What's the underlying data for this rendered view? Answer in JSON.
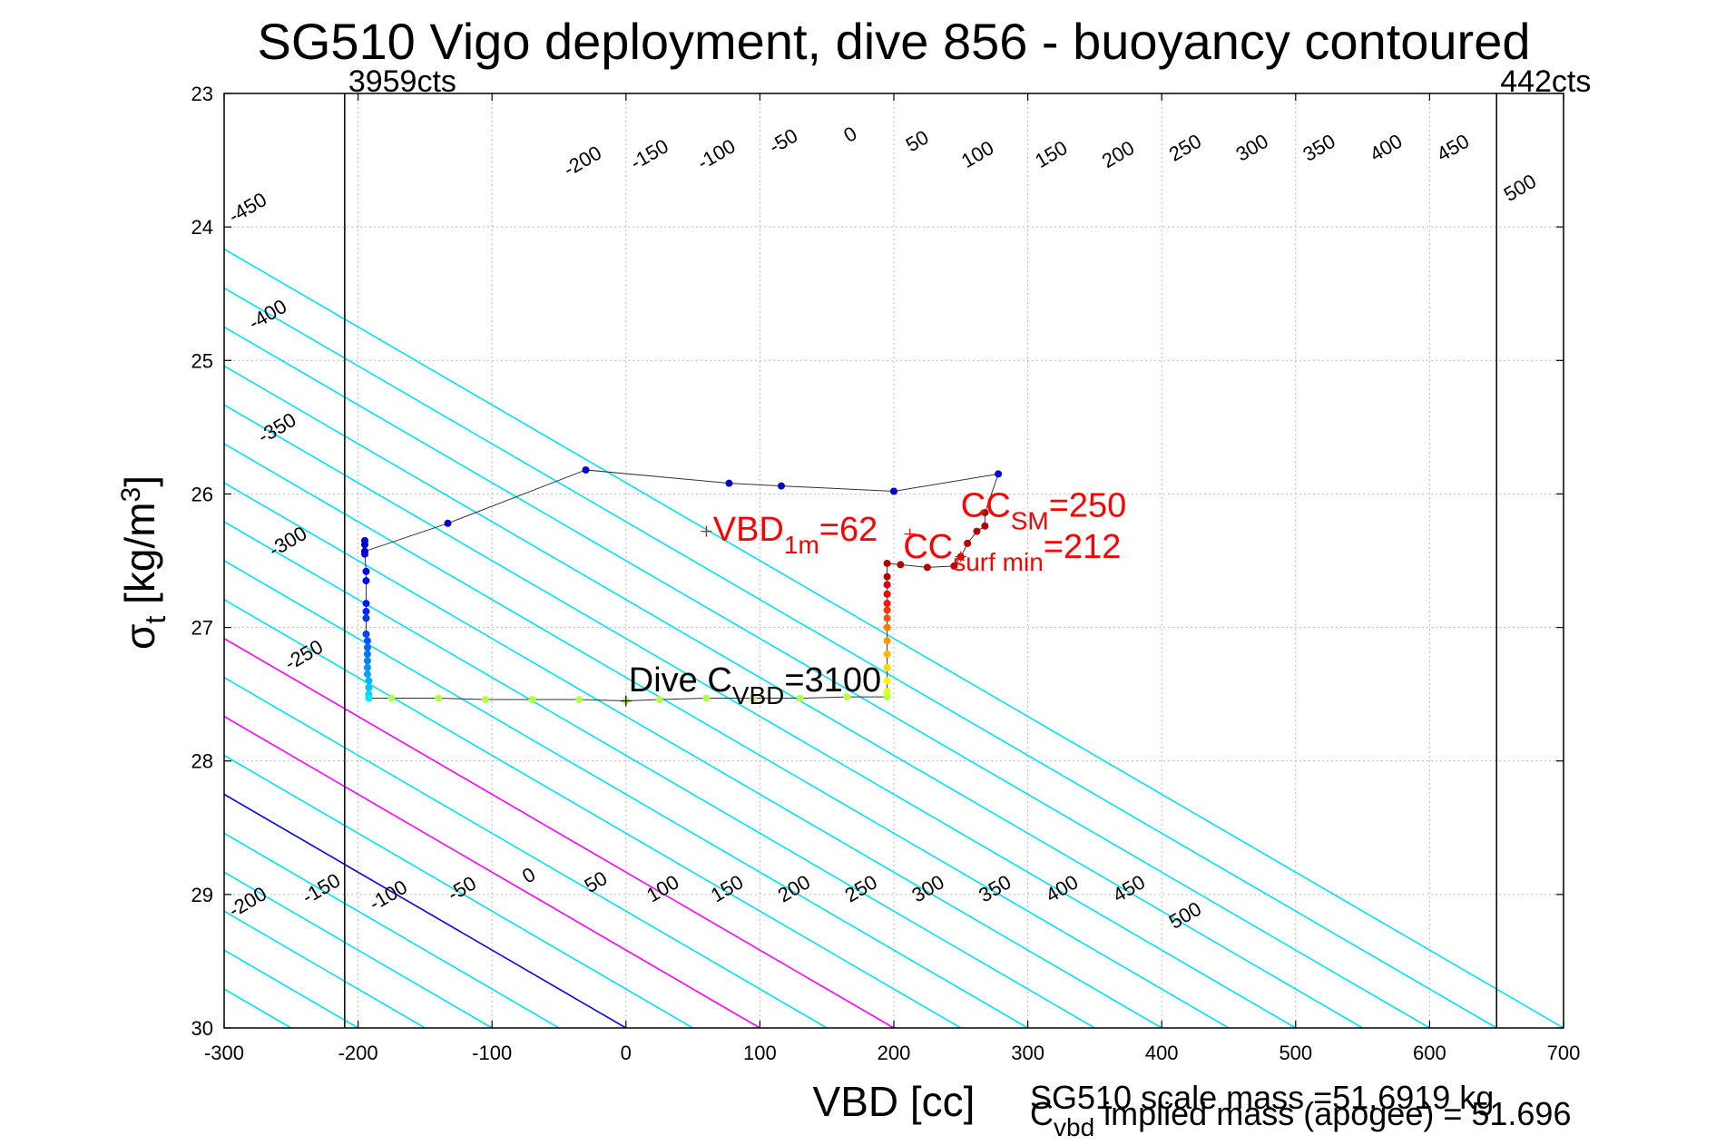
{
  "chart_data": {
    "type": "scatter",
    "title": "SG510 Vigo deployment, dive 856 - buoyancy contoured",
    "xlabel": "VBD [cc]",
    "ylabel": {
      "base": "σ",
      "sub": "t",
      "unit_pre": " [kg/m",
      "unit_sup": "3",
      "unit_post": "]"
    },
    "xlim": [
      -300,
      700
    ],
    "ylim": [
      23,
      30
    ],
    "y_reversed": true,
    "grid": true,
    "x_ticks": [
      -300,
      -200,
      -100,
      0,
      100,
      200,
      300,
      400,
      500,
      600,
      700
    ],
    "y_ticks": [
      23,
      24,
      25,
      26,
      27,
      28,
      29,
      30
    ],
    "vertical_lines": [
      {
        "x": -210,
        "label": "3959cts"
      },
      {
        "x": 650,
        "label": "442cts"
      }
    ],
    "contours": {
      "color": "#00e5ee",
      "slope_cc_per_sigma": 171.4,
      "values": [
        -450,
        -400,
        -350,
        -300,
        -250,
        -200,
        -150,
        -100,
        -50,
        0,
        50,
        100,
        150,
        200,
        250,
        300,
        350,
        400,
        450,
        500
      ],
      "highlight": [
        {
          "value": 0,
          "color": "#0000ff"
        },
        {
          "value": 100,
          "color": "#ff00ff"
        },
        {
          "value": 200,
          "color": "#ff00ff"
        }
      ],
      "labels_top": [
        {
          "value": -450,
          "x": -280,
          "y": 23.9
        },
        {
          "value": -400,
          "x": -265,
          "y": 24.7
        },
        {
          "value": -350,
          "x": -258,
          "y": 25.55
        },
        {
          "value": -300,
          "x": -250,
          "y": 26.4
        },
        {
          "value": -250,
          "x": -238,
          "y": 27.25
        },
        {
          "value": -200,
          "x": -30,
          "y": 23.55
        },
        {
          "value": -150,
          "x": 20,
          "y": 23.5
        },
        {
          "value": -100,
          "x": 70,
          "y": 23.5
        },
        {
          "value": -50,
          "x": 120,
          "y": 23.4
        },
        {
          "value": 0,
          "x": 170,
          "y": 23.35
        },
        {
          "value": 50,
          "x": 220,
          "y": 23.4
        },
        {
          "value": 100,
          "x": 265,
          "y": 23.5
        },
        {
          "value": 150,
          "x": 320,
          "y": 23.5
        },
        {
          "value": 200,
          "x": 370,
          "y": 23.5
        },
        {
          "value": 250,
          "x": 420,
          "y": 23.45
        },
        {
          "value": 300,
          "x": 470,
          "y": 23.45
        },
        {
          "value": 350,
          "x": 520,
          "y": 23.45
        },
        {
          "value": 400,
          "x": 570,
          "y": 23.45
        },
        {
          "value": 450,
          "x": 620,
          "y": 23.45
        },
        {
          "value": 500,
          "x": 670,
          "y": 23.75
        }
      ],
      "labels_bottom": [
        {
          "value": -200,
          "x": -280,
          "y": 29.1
        },
        {
          "value": -150,
          "x": -225,
          "y": 29.0
        },
        {
          "value": -100,
          "x": -175,
          "y": 29.05
        },
        {
          "value": -50,
          "x": -120,
          "y": 29.0
        },
        {
          "value": 0,
          "x": -70,
          "y": 28.9
        },
        {
          "value": 50,
          "x": -20,
          "y": 28.95
        },
        {
          "value": 100,
          "x": 30,
          "y": 29.0
        },
        {
          "value": 150,
          "x": 78,
          "y": 29.0
        },
        {
          "value": 200,
          "x": 128,
          "y": 29.0
        },
        {
          "value": 250,
          "x": 178,
          "y": 29.0
        },
        {
          "value": 300,
          "x": 228,
          "y": 29.0
        },
        {
          "value": 350,
          "x": 278,
          "y": 29.0
        },
        {
          "value": 400,
          "x": 328,
          "y": 29.0
        },
        {
          "value": 450,
          "x": 378,
          "y": 29.0
        },
        {
          "value": 500,
          "x": 420,
          "y": 29.2
        }
      ]
    },
    "series": [
      {
        "points": [
          [
            -195,
            26.43
          ],
          [
            -195,
            26.38
          ],
          [
            -195,
            26.35
          ],
          [
            -195,
            26.45
          ],
          [
            -194,
            26.58
          ],
          [
            -194,
            26.65
          ],
          [
            -194,
            26.82
          ],
          [
            -194,
            26.88
          ],
          [
            -194,
            26.93
          ],
          [
            -194,
            27.05
          ],
          [
            -193,
            27.1
          ],
          [
            -193,
            27.15
          ],
          [
            -193,
            27.2
          ],
          [
            -193,
            27.25
          ],
          [
            -193,
            27.3
          ],
          [
            -193,
            27.35
          ],
          [
            -192,
            27.4
          ],
          [
            -192,
            27.45
          ],
          [
            -192,
            27.5
          ],
          [
            -192,
            27.53
          ],
          [
            -175,
            27.53
          ],
          [
            -140,
            27.53
          ],
          [
            -105,
            27.54
          ],
          [
            -70,
            27.54
          ],
          [
            -35,
            27.54
          ],
          [
            0,
            27.55
          ],
          [
            25,
            27.54
          ],
          [
            60,
            27.53
          ],
          [
            95,
            27.53
          ],
          [
            130,
            27.53
          ],
          [
            165,
            27.52
          ],
          [
            195,
            27.52
          ],
          [
            195,
            27.48
          ],
          [
            195,
            27.4
          ],
          [
            195,
            27.3
          ],
          [
            195,
            27.2
          ],
          [
            195,
            27.1
          ],
          [
            195,
            27.0
          ],
          [
            195,
            26.93
          ],
          [
            195,
            26.87
          ],
          [
            195,
            26.82
          ],
          [
            195,
            26.75
          ],
          [
            195,
            26.68
          ],
          [
            195,
            26.62
          ],
          [
            195,
            26.52
          ],
          [
            205,
            26.53
          ],
          [
            225,
            26.55
          ],
          [
            245,
            26.54
          ],
          [
            250,
            26.47
          ],
          [
            255,
            26.37
          ],
          [
            262,
            26.28
          ],
          [
            268,
            26.24
          ],
          [
            268,
            26.14
          ],
          [
            278,
            25.85
          ],
          [
            200,
            25.98
          ],
          [
            116,
            25.94
          ],
          [
            77,
            25.92
          ],
          [
            -30,
            25.82
          ],
          [
            -133,
            26.22
          ],
          [
            -195,
            26.43
          ]
        ]
      }
    ],
    "annotations": [
      {
        "text": "VBD",
        "sub": "1m",
        "rest": "=62",
        "x": 65,
        "y": 26.35,
        "marker": [
          60,
          26.28
        ],
        "color": "#ff0000"
      },
      {
        "text": "CC",
        "sub": "SM",
        "rest": "=250",
        "x": 250,
        "y": 26.17,
        "marker": [
          250,
          26.47
        ],
        "color": "#ff0000"
      },
      {
        "text": "CC",
        "sub": "surf min",
        "rest": "=212",
        "x": 207,
        "y": 26.48,
        "marker": [
          212,
          26.3
        ],
        "color": "#ff0000"
      },
      {
        "text": "Dive C",
        "sub": "VBD",
        "rest": "=3100",
        "x": 2,
        "y": 27.48,
        "marker": [
          0,
          27.55
        ],
        "color": "#000000"
      }
    ],
    "footer": {
      "line1": "SG510 scale mass =51.6919 kg",
      "line2_base": "C",
      "line2_sub": "vbd",
      "line2_rest": " implied mass (apogee) = 51.696"
    }
  }
}
